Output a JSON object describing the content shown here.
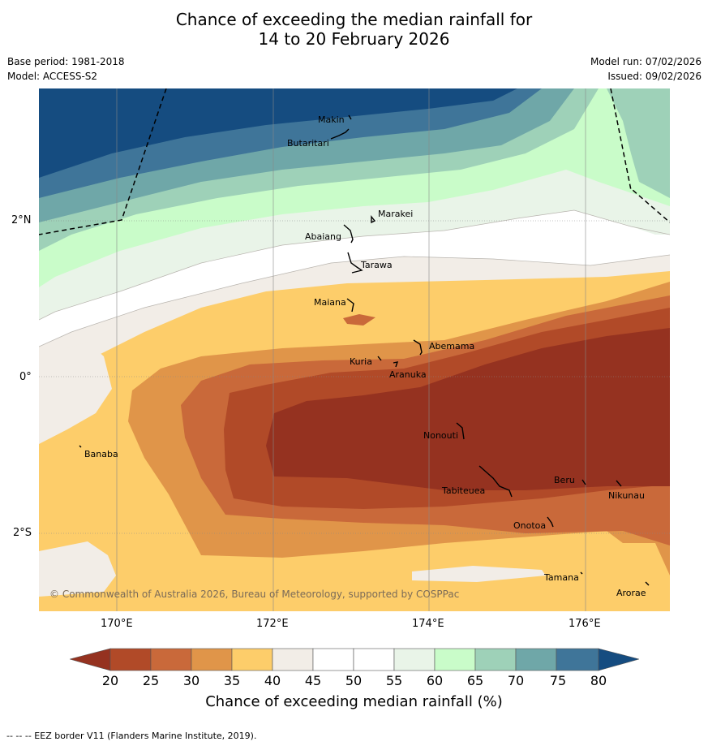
{
  "title": {
    "line1": "Chance of exceeding the median rainfall for",
    "line2": "14 to 20 February 2026"
  },
  "meta": {
    "base_period": "Base period: 1981-2018",
    "model": "Model: ACCESS-S2",
    "model_run": "Model run: 07/02/2026",
    "issued": "Issued: 09/02/2026"
  },
  "map": {
    "copyright": "© Commonwealth of Australia 2026, Bureau of Meteorology, supported by COSPPac",
    "lon_labels": [
      "170°E",
      "172°E",
      "174°E",
      "176°E"
    ],
    "lat_labels": [
      "2°N",
      "0°",
      "2°S"
    ],
    "places": [
      {
        "name": "Makin"
      },
      {
        "name": "Butaritari"
      },
      {
        "name": "Marakei"
      },
      {
        "name": "Abaiang"
      },
      {
        "name": "Tarawa"
      },
      {
        "name": "Maiana"
      },
      {
        "name": "Abemama"
      },
      {
        "name": "Kuria"
      },
      {
        "name": "Aranuka"
      },
      {
        "name": "Banaba"
      },
      {
        "name": "Nonouti"
      },
      {
        "name": "Beru"
      },
      {
        "name": "Tabiteuea"
      },
      {
        "name": "Nikunau"
      },
      {
        "name": "Onotoa"
      },
      {
        "name": "Tamana"
      },
      {
        "name": "Arorae"
      }
    ]
  },
  "colorbar": {
    "title": "Chance of exceeding median rainfall (%)",
    "ticks": [
      "20",
      "25",
      "30",
      "35",
      "40",
      "45",
      "50",
      "55",
      "60",
      "65",
      "70",
      "75",
      "80"
    ],
    "colors": [
      "#953220",
      "#b14a28",
      "#c9693a",
      "#e09549",
      "#fdcd6a",
      "#f2ede7",
      "#ffffff",
      "#ffffff",
      "#e9f4e8",
      "#c9fcc9",
      "#9ed1b8",
      "#6fa7a8",
      "#3f7599",
      "#154c80"
    ]
  },
  "footnote": "--  --  -- EEZ border V11 (Flanders Marine Institute, 2019)."
}
